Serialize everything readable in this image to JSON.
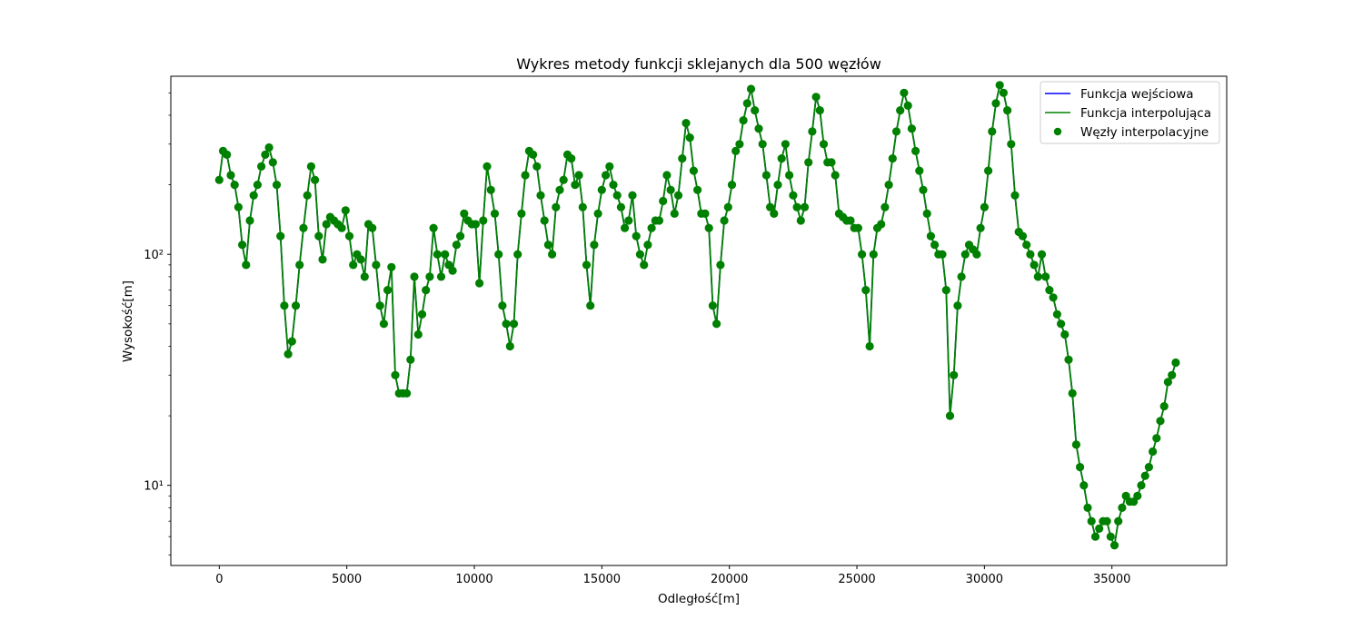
{
  "chart_data": {
    "type": "line",
    "title": "Wykres metody funkcji sklejanych dla 500 węzłów",
    "xlabel": "Odległość[m]",
    "ylabel": "Wysokość[m]",
    "xscale": "linear",
    "yscale": "log",
    "xlim": [
      -1900,
      39500
    ],
    "ylim": [
      4.5,
      590
    ],
    "grid": false,
    "legend_position": "top-right",
    "x_ticks": [
      0,
      5000,
      10000,
      15000,
      20000,
      25000,
      30000,
      35000
    ],
    "x_tick_labels": [
      "0",
      "5000",
      "10000",
      "15000",
      "20000",
      "25000",
      "30000",
      "35000"
    ],
    "y_ticks": [
      10,
      100
    ],
    "y_tick_labels": [
      "10¹",
      "10²"
    ],
    "series": [
      {
        "name": "Funkcja wejściowa",
        "kind": "line",
        "color": "#0000ff"
      },
      {
        "name": "Funkcja interpolująca",
        "kind": "line",
        "color": "#008000"
      },
      {
        "name": "Węzły interpolacyjne",
        "kind": "scatter",
        "color": "#008000"
      }
    ],
    "x": [
      0,
      150,
      300,
      450,
      600,
      750,
      900,
      1050,
      1200,
      1350,
      1500,
      1650,
      1800,
      1950,
      2100,
      2250,
      2400,
      2550,
      2700,
      2850,
      3000,
      3150,
      3300,
      3450,
      3600,
      3750,
      3900,
      4050,
      4200,
      4350,
      4500,
      4650,
      4800,
      4950,
      5100,
      5250,
      5400,
      5550,
      5700,
      5850,
      6000,
      6150,
      6300,
      6450,
      6600,
      6750,
      6900,
      7050,
      7200,
      7350,
      7500,
      7650,
      7800,
      7950,
      8100,
      8250,
      8400,
      8550,
      8700,
      8850,
      9000,
      9150,
      9300,
      9450,
      9600,
      9750,
      9900,
      10050,
      10200,
      10350,
      10500,
      10650,
      10800,
      10950,
      11100,
      11250,
      11400,
      11550,
      11700,
      11850,
      12000,
      12150,
      12300,
      12450,
      12600,
      12750,
      12900,
      13050,
      13200,
      13350,
      13500,
      13650,
      13800,
      13950,
      14100,
      14250,
      14400,
      14550,
      14700,
      14850,
      15000,
      15150,
      15300,
      15450,
      15600,
      15750,
      15900,
      16050,
      16200,
      16350,
      16500,
      16650,
      16800,
      16950,
      17100,
      17250,
      17400,
      17550,
      17700,
      17850,
      18000,
      18150,
      18300,
      18450,
      18600,
      18750,
      18900,
      19050,
      19200,
      19350,
      19500,
      19650,
      19800,
      19950,
      20100,
      20250,
      20400,
      20550,
      20700,
      20850,
      21000,
      21150,
      21300,
      21450,
      21600,
      21750,
      21900,
      22050,
      22200,
      22350,
      22500,
      22650,
      22800,
      22950,
      23100,
      23250,
      23400,
      23550,
      23700,
      23850,
      24000,
      24150,
      24300,
      24450,
      24600,
      24750,
      24900,
      25050,
      25200,
      25350,
      25500,
      25650,
      25800,
      25950,
      26100,
      26250,
      26400,
      26550,
      26700,
      26850,
      27000,
      27150,
      27300,
      27450,
      27600,
      27750,
      27900,
      28050,
      28200,
      28350,
      28500,
      28650,
      28800,
      28950,
      29100,
      29250,
      29400,
      29550,
      29700,
      29850,
      30000,
      30150,
      30300,
      30450,
      30600,
      30750,
      30900,
      31050,
      31200,
      31350,
      31500,
      31650,
      31800,
      31950,
      32100,
      32250,
      32400,
      32550,
      32700,
      32850,
      33000,
      33150,
      33300,
      33450,
      33600,
      33750,
      33900,
      34050,
      34200,
      34350,
      34500,
      34650,
      34800,
      34950,
      35100,
      35250,
      35400,
      35550,
      35700,
      35850,
      36000,
      36150,
      36300,
      36450,
      36600,
      36750,
      36900,
      37050,
      37200,
      37350,
      37500
    ],
    "y": [
      210,
      280,
      270,
      220,
      200,
      160,
      110,
      90,
      140,
      180,
      200,
      240,
      270,
      290,
      250,
      200,
      120,
      60,
      37,
      42,
      60,
      90,
      130,
      180,
      240,
      210,
      120,
      95,
      135,
      145,
      140,
      135,
      130,
      155,
      120,
      90,
      100,
      95,
      80,
      135,
      130,
      90,
      60,
      50,
      70,
      88,
      30,
      25,
      25,
      25,
      35,
      80,
      45,
      55,
      70,
      80,
      130,
      100,
      80,
      100,
      90,
      85,
      110,
      120,
      150,
      140,
      135,
      135,
      75,
      140,
      240,
      190,
      150,
      100,
      60,
      50,
      40,
      50,
      100,
      150,
      220,
      280,
      270,
      240,
      180,
      140,
      110,
      100,
      160,
      190,
      210,
      270,
      260,
      200,
      220,
      160,
      90,
      60,
      110,
      150,
      190,
      220,
      240,
      200,
      180,
      160,
      130,
      140,
      180,
      120,
      100,
      90,
      110,
      130,
      140,
      140,
      170,
      220,
      190,
      150,
      180,
      260,
      370,
      320,
      230,
      190,
      150,
      150,
      130,
      60,
      50,
      90,
      140,
      160,
      200,
      280,
      300,
      380,
      450,
      520,
      420,
      350,
      300,
      220,
      160,
      150,
      200,
      260,
      300,
      220,
      180,
      160,
      140,
      160,
      250,
      340,
      480,
      420,
      300,
      250,
      250,
      220,
      150,
      145,
      140,
      140,
      130,
      130,
      100,
      70,
      40,
      100,
      130,
      135,
      160,
      200,
      260,
      340,
      420,
      500,
      440,
      350,
      280,
      230,
      190,
      150,
      120,
      110,
      100,
      100,
      70,
      20,
      30,
      60,
      80,
      100,
      110,
      105,
      100,
      130,
      160,
      230,
      340,
      450,
      540,
      500,
      420,
      300,
      180,
      125,
      120,
      110,
      100,
      90,
      80,
      100,
      80,
      70,
      65,
      55,
      50,
      45,
      35,
      25,
      15,
      12,
      10,
      8,
      7,
      6,
      6.5,
      7,
      7,
      6,
      5.5,
      7,
      8,
      9,
      8.5,
      8.5,
      9,
      10,
      11,
      12,
      14,
      16,
      19,
      22,
      28,
      30,
      34
    ]
  }
}
